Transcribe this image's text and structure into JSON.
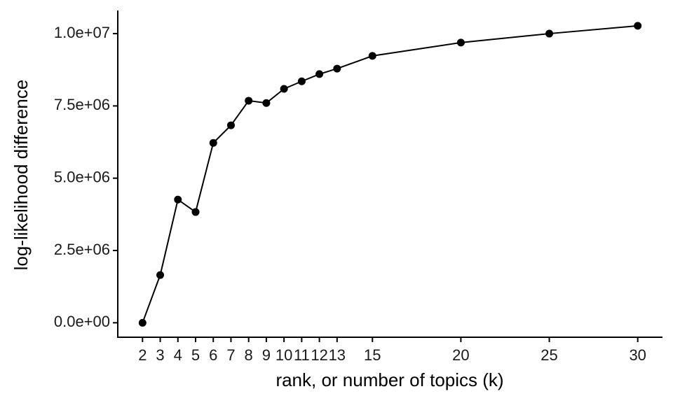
{
  "chart_data": {
    "type": "line",
    "x_label": "rank, or number of topics (k)",
    "y_label": "log-likelihood difference",
    "x": [
      2,
      3,
      4,
      5,
      6,
      7,
      8,
      9,
      10,
      11,
      12,
      13,
      15,
      20,
      25,
      30
    ],
    "series": [
      {
        "color": "#000000",
        "values": [
          0,
          1650000,
          4260000,
          3830000,
          6220000,
          6830000,
          7680000,
          7600000,
          8090000,
          8350000,
          8600000,
          8790000,
          9230000,
          9690000,
          10000000,
          10270000
        ]
      }
    ],
    "xlim": [
      0.6,
      31.4
    ],
    "ylim": [
      -500000,
      10800000
    ],
    "xticks": [
      2,
      3,
      4,
      5,
      6,
      7,
      8,
      9,
      10,
      11,
      12,
      13,
      15,
      20,
      25,
      30
    ],
    "yticks": [
      {
        "value": 0,
        "label": "0.0e+00"
      },
      {
        "value": 2500000,
        "label": "2.5e+06"
      },
      {
        "value": 5000000,
        "label": "5.0e+06"
      },
      {
        "value": 7500000,
        "label": "7.5e+06"
      },
      {
        "value": 10000000,
        "label": "1.0e+07"
      }
    ],
    "grid": false
  }
}
